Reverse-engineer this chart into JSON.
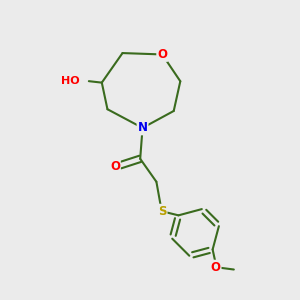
{
  "background_color": "#ebebeb",
  "bond_color": "#3a6b1e",
  "atom_colors": {
    "O": "#ff0000",
    "N": "#0000ee",
    "S": "#b8a000",
    "H": "#808080"
  },
  "figsize": [
    3.0,
    3.0
  ],
  "dpi": 100,
  "lw": 1.5,
  "fontsize": 8.5
}
